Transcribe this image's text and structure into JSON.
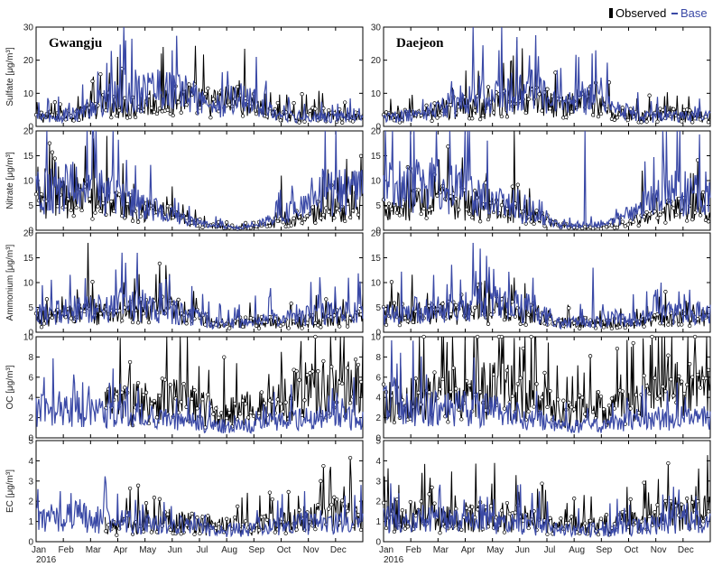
{
  "legend": {
    "observed_label": "Observed",
    "base_label": "Base",
    "observed_color": "#000000",
    "base_color": "#3a49a6"
  },
  "stations": [
    "Gwangju",
    "Daejeon"
  ],
  "months": [
    "Jan",
    "Feb",
    "Mar",
    "Apr",
    "May",
    "Jun",
    "Jul",
    "Aug",
    "Sep",
    "Oct",
    "Nov",
    "Dec"
  ],
  "year_label": "2016",
  "panels": [
    {
      "ylabel": "Sulfate [μg/m³]",
      "ylim": [
        0,
        30
      ],
      "yticks": [
        0,
        10,
        20,
        30
      ]
    },
    {
      "ylabel": "Nitrate [μg/m³]",
      "ylim": [
        0,
        20
      ],
      "yticks": [
        0,
        5,
        10,
        15,
        20
      ]
    },
    {
      "ylabel": "Ammonium [μg/m³]",
      "ylim": [
        0,
        20
      ],
      "yticks": [
        0,
        5,
        10,
        15,
        20
      ]
    },
    {
      "ylabel": "OC [μg/m³]",
      "ylim": [
        0,
        10
      ],
      "yticks": [
        0,
        2,
        4,
        6,
        8,
        10
      ]
    },
    {
      "ylabel": "EC [μg/m³]",
      "ylim": [
        0,
        5
      ],
      "yticks": [
        0,
        1,
        2,
        3,
        4,
        5
      ]
    }
  ],
  "chart_data": {
    "type": "line",
    "x_unit": "month (2016)",
    "x": [
      "Jan",
      "Feb",
      "Mar",
      "Apr",
      "May",
      "Jun",
      "Jul",
      "Aug",
      "Sep",
      "Oct",
      "Nov",
      "Dec"
    ],
    "series_names": [
      "Observed",
      "Base"
    ],
    "panels": [
      {
        "station": "Gwangju",
        "variable": "Sulfate",
        "ylim": [
          0,
          30
        ],
        "series": [
          {
            "name": "Observed",
            "values": [
              3,
              4,
              7,
              6,
              8,
              9,
              7,
              9,
              4,
              3,
              4,
              3
            ],
            "peaks": [
              [
                3.0,
                21
              ],
              [
                5.0,
                19
              ],
              [
                7.4,
                12
              ]
            ]
          },
          {
            "name": "Base",
            "values": [
              3,
              4,
              8,
              11,
              12,
              10,
              6,
              9,
              6,
              3,
              3,
              3
            ],
            "peaks": [
              [
                3.3,
                26
              ],
              [
                5.0,
                23
              ],
              [
                8.1,
                21
              ]
            ]
          }
        ]
      },
      {
        "station": "Daejeon",
        "variable": "Sulfate",
        "ylim": [
          0,
          30
        ],
        "series": [
          {
            "name": "Observed",
            "values": [
              3,
              4,
              6,
              6,
              7,
              9,
              6,
              8,
              4,
              3,
              4,
              3
            ],
            "peaks": [
              [
                4.9,
                26
              ],
              [
                7.6,
                12
              ]
            ]
          },
          {
            "name": "Base",
            "values": [
              3,
              4,
              7,
              10,
              11,
              11,
              6,
              10,
              6,
              3,
              3,
              3
            ],
            "peaks": [
              [
                3.3,
                30
              ],
              [
                4.9,
                27
              ],
              [
                7.8,
                23
              ]
            ]
          }
        ]
      },
      {
        "station": "Gwangju",
        "variable": "Nitrate",
        "ylim": [
          0,
          20
        ],
        "series": [
          {
            "name": "Observed",
            "values": [
              6,
              7,
              6,
              5,
              4,
              2,
              1,
              0.5,
              1,
              2,
              4,
              5
            ],
            "peaks": [
              [
                1.8,
                17
              ],
              [
                2.6,
                19
              ],
              [
                9.0,
                11
              ]
            ]
          },
          {
            "name": "Base",
            "values": [
              9,
              9,
              8,
              6,
              4,
              2,
              1,
              0.5,
              2,
              5,
              8,
              8
            ],
            "peaks": [
              [
                0.4,
                20
              ],
              [
                2.2,
                20
              ],
              [
                11.0,
                20
              ]
            ]
          }
        ]
      },
      {
        "station": "Daejeon",
        "variable": "Nitrate",
        "ylim": [
          0,
          20
        ],
        "series": [
          {
            "name": "Observed",
            "values": [
              5,
              6,
              6,
              5,
              4,
              3,
              1,
              0.5,
              1,
              2,
              4,
              5
            ],
            "peaks": [
              [
                4.8,
                20
              ],
              [
                9.5,
                12
              ]
            ]
          },
          {
            "name": "Base",
            "values": [
              9,
              10,
              9,
              7,
              5,
              3,
              1,
              1,
              2,
              5,
              8,
              8
            ],
            "peaks": [
              [
                1.0,
                20
              ],
              [
                3.0,
                20
              ],
              [
                7.4,
                20
              ]
            ]
          }
        ]
      },
      {
        "station": "Gwangju",
        "variable": "Ammonium",
        "ylim": [
          0,
          20
        ],
        "series": [
          {
            "name": "Observed",
            "values": [
              3,
              4,
              4,
              4,
              5,
              4,
              2,
              2,
              2,
              2,
              3,
              3
            ],
            "peaks": [
              [
                1.9,
                18
              ],
              [
                4.8,
                9
              ]
            ]
          },
          {
            "name": "Base",
            "values": [
              4,
              5,
              5,
              6,
              5,
              4,
              2,
              2,
              3,
              3,
              4,
              4
            ],
            "peaks": [
              [
                3.7,
                16
              ],
              [
                3.3,
                14
              ]
            ]
          }
        ]
      },
      {
        "station": "Daejeon",
        "variable": "Ammonium",
        "ylim": [
          0,
          20
        ],
        "series": [
          {
            "name": "Observed",
            "values": [
              4,
              4,
              4,
              4,
              5,
              4,
              2,
              2,
              2,
              2,
              3,
              3
            ],
            "peaks": [
              [
                4.8,
                11
              ]
            ]
          },
          {
            "name": "Base",
            "values": [
              4,
              5,
              5,
              6,
              6,
              5,
              2,
              2,
              3,
              3,
              4,
              4
            ],
            "peaks": [
              [
                3.3,
                18
              ],
              [
                7.7,
                13
              ]
            ]
          }
        ]
      },
      {
        "station": "Gwangju",
        "variable": "OC",
        "ylim": [
          0,
          10
        ],
        "series": [
          {
            "name": "Observed",
            "values": [
              null,
              null,
              null,
              3.5,
              4,
              4,
              2.5,
              3,
              3,
              5,
              5,
              5
            ],
            "peaks": [
              [
                4.8,
                10
              ],
              [
                9.0,
                8.5
              ],
              [
                10.8,
                10
              ]
            ]
          },
          {
            "name": "Base",
            "values": [
              3,
              3,
              2.5,
              2.5,
              2,
              1.8,
              1.2,
              1.2,
              1.5,
              2,
              2,
              2
            ],
            "peaks": [
              [
                0.3,
                6
              ],
              [
                1.7,
                5.5
              ]
            ]
          }
        ]
      },
      {
        "station": "Daejeon",
        "variable": "OC",
        "ylim": [
          0,
          10
        ],
        "series": [
          {
            "name": "Observed",
            "values": [
              4,
              4,
              4.5,
              5,
              5,
              4,
              2.5,
              3,
              3,
              4,
              5.5,
              5
            ],
            "peaks": [
              [
                1.3,
                10
              ],
              [
                5.0,
                9
              ],
              [
                10.6,
                10
              ]
            ]
          },
          {
            "name": "Base",
            "values": [
              3.5,
              3,
              3,
              3,
              2.5,
              2,
              1.2,
              1.2,
              1.5,
              2,
              2,
              2
            ],
            "peaks": [
              [
                0.4,
                6
              ]
            ]
          }
        ]
      },
      {
        "station": "Gwangju",
        "variable": "EC",
        "ylim": [
          0,
          5
        ],
        "series": [
          {
            "name": "Observed",
            "values": [
              null,
              null,
              null,
              0.9,
              1.1,
              1,
              0.8,
              0.8,
              0.9,
              1.1,
              1.4,
              1.5
            ],
            "peaks": [
              [
                10.8,
                3.7
              ]
            ]
          },
          {
            "name": "Base",
            "values": [
              1.2,
              1.3,
              1.1,
              1,
              1,
              0.9,
              0.6,
              0.6,
              0.7,
              0.9,
              1,
              1
            ],
            "peaks": [
              [
                0.9,
                2.5
              ],
              [
                1.6,
                2.1
              ]
            ]
          }
        ]
      },
      {
        "station": "Daejeon",
        "variable": "EC",
        "ylim": [
          0,
          5
        ],
        "series": [
          {
            "name": "Observed",
            "values": [
              1.4,
              1.3,
              1.2,
              1.3,
              1.3,
              1.1,
              0.8,
              0.8,
              0.9,
              1.1,
              1.5,
              1.5
            ],
            "peaks": [
              [
                1.4,
                3.4
              ],
              [
                10.1,
                3.1
              ]
            ]
          },
          {
            "name": "Base",
            "values": [
              1.2,
              1.2,
              1.1,
              1,
              1,
              0.9,
              0.6,
              0.6,
              0.7,
              0.8,
              1,
              1
            ],
            "peaks": [
              [
                0.4,
                2.2
              ]
            ]
          }
        ]
      }
    ]
  }
}
